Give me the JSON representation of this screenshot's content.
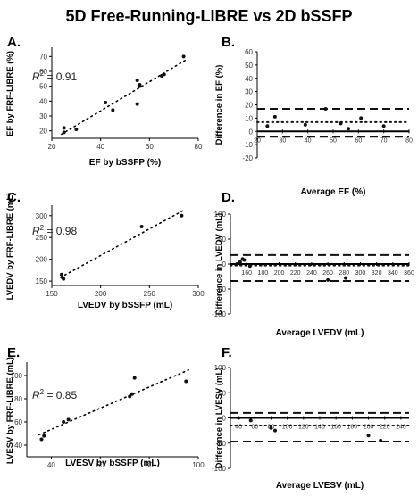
{
  "title": "5D Free-Running-LIBRE vs 2D bSSFP",
  "chart_data": [
    {
      "panel": "A.",
      "type": "scatter",
      "xlabel": "EF by bSSFP (%)",
      "ylabel": "EF by FRF-LIBRE (%)",
      "xlim": [
        20,
        80
      ],
      "ylim": [
        15,
        75
      ],
      "xticks": [
        20,
        40,
        60,
        80
      ],
      "yticks": [
        20,
        30,
        40,
        50,
        60,
        70
      ],
      "r2_label": "R",
      "r2_sup": "2",
      "r2_value": " = 0.91",
      "trendline": true,
      "points": [
        [
          25,
          22
        ],
        [
          25,
          19
        ],
        [
          30,
          21
        ],
        [
          42,
          39
        ],
        [
          45,
          34
        ],
        [
          55,
          38
        ],
        [
          55,
          54
        ],
        [
          56,
          50
        ],
        [
          56,
          51
        ],
        [
          65,
          57
        ],
        [
          66,
          58
        ],
        [
          74,
          70
        ]
      ]
    },
    {
      "panel": "B.",
      "type": "scatter",
      "xlabel": "Average EF (%)",
      "ylabel": "Difference in EF (%)",
      "xlim": [
        20,
        80
      ],
      "ylim": [
        -20,
        60
      ],
      "xticks": [
        20,
        30,
        40,
        50,
        60,
        70,
        80
      ],
      "yticks": [
        -20,
        -10,
        0,
        10,
        20,
        30,
        40,
        50,
        60
      ],
      "mean_diff": 7,
      "loa": [
        17,
        -4
      ],
      "points": [
        [
          24,
          4
        ],
        [
          27,
          11
        ],
        [
          39,
          5
        ],
        [
          47,
          17
        ],
        [
          53,
          6
        ],
        [
          56,
          2
        ],
        [
          61,
          10
        ],
        [
          70,
          4
        ]
      ]
    },
    {
      "panel": "C.",
      "type": "scatter",
      "xlabel": "LVEDV by bSSFP (mL)",
      "ylabel": "LVEDV by FRF-LIBRE (mL)",
      "xlim": [
        150,
        300
      ],
      "ylim": [
        140,
        320
      ],
      "xticks": [
        150,
        200,
        250,
        300
      ],
      "yticks": [
        150,
        200,
        250,
        300
      ],
      "r2_label": "R",
      "r2_sup": "2",
      "r2_value": " = 0.98",
      "trendline": true,
      "points": [
        [
          160,
          165
        ],
        [
          161,
          158
        ],
        [
          162,
          155
        ],
        [
          242,
          275
        ],
        [
          283,
          300
        ]
      ]
    },
    {
      "panel": "D.",
      "type": "scatter",
      "xlabel": "Average LVEDV (mL)",
      "ylabel": "Difference in LVEDV (mL)",
      "xlim": [
        140,
        360
      ],
      "ylim": [
        -100,
        100
      ],
      "xticks": [
        160,
        180,
        200,
        220,
        240,
        260,
        280,
        300,
        320,
        340,
        360
      ],
      "ytick_labels": [
        "100",
        "50",
        "0",
        "-50",
        "-100"
      ],
      "yticks": [
        100,
        50,
        0,
        -50,
        -100
      ],
      "mean_diff": -3,
      "loa": [
        18,
        -34
      ],
      "points": [
        [
          148,
          0
        ],
        [
          152,
          4
        ],
        [
          155,
          10
        ],
        [
          157,
          8
        ],
        [
          164,
          -4
        ],
        [
          260,
          -32
        ],
        [
          282,
          -28
        ]
      ]
    },
    {
      "panel": "E.",
      "type": "scatter",
      "xlabel": "LVESV by bSSFP (mL)",
      "ylabel": "LVESV by FRF-LIBRE (mL)",
      "xlim": [
        30,
        100
      ],
      "ylim": [
        30,
        110
      ],
      "xticks": [
        40,
        60,
        80,
        100
      ],
      "yticks": [
        40,
        60,
        80,
        100
      ],
      "r2_label": "R",
      "r2_sup": "2",
      "r2_value": " = 0.85",
      "trendline": true,
      "points": [
        [
          36,
          45
        ],
        [
          37,
          48
        ],
        [
          45,
          60
        ],
        [
          47,
          62
        ],
        [
          72,
          82
        ],
        [
          73,
          84
        ],
        [
          74,
          98
        ],
        [
          95,
          95
        ]
      ]
    },
    {
      "panel": "F.",
      "type": "scatter",
      "xlabel": "Average LVESV (mL)",
      "ylabel": "Difference in LVESV (mL)",
      "xlim": [
        30,
        250
      ],
      "ylim": [
        -100,
        100
      ],
      "xticks": [
        40,
        60,
        80,
        100,
        120,
        140,
        160,
        180,
        200,
        220,
        240
      ],
      "yticks": [
        100,
        50,
        0,
        -50,
        -100
      ],
      "mean_diff": -15,
      "loa": [
        10,
        -47
      ],
      "points": [
        [
          40,
          0
        ],
        [
          55,
          -5
        ],
        [
          80,
          -20
        ],
        [
          85,
          -25
        ],
        [
          200,
          -35
        ],
        [
          215,
          -45
        ]
      ]
    }
  ]
}
